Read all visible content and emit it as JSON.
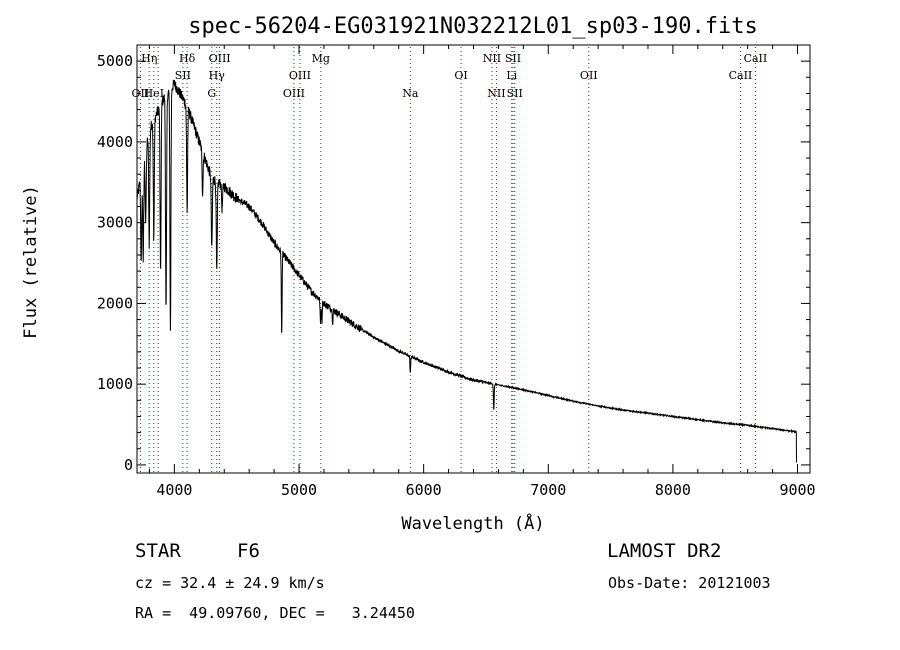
{
  "chart_data": {
    "type": "line",
    "title": "spec-56204-EG031921N032212L01_sp03-190.fits",
    "xlabel": "Wavelength (Å)",
    "ylabel": "Flux (relative)",
    "xlim": [
      3700,
      9100
    ],
    "ylim": [
      -100,
      5200
    ],
    "xticks": [
      4000,
      5000,
      6000,
      7000,
      8000,
      9000
    ],
    "yticks": [
      0,
      1000,
      2000,
      3000,
      4000,
      5000
    ],
    "line_color": "#000000",
    "marker_color": "#cc0000",
    "continuum": {
      "x": [
        3700,
        3800,
        3900,
        4000,
        4100,
        4200,
        4300,
        4400,
        4500,
        4600,
        4700,
        4800,
        4900,
        5000,
        5100,
        5200,
        5400,
        5600,
        5800,
        6000,
        6200,
        6400,
        6600,
        6800,
        7000,
        7200,
        7400,
        7600,
        7800,
        8000,
        8200,
        8400,
        8600,
        8800,
        8990
      ],
      "y": [
        3300,
        4150,
        4500,
        4720,
        4450,
        4000,
        3550,
        3450,
        3300,
        3200,
        3000,
        2750,
        2550,
        2350,
        2150,
        2000,
        1780,
        1580,
        1410,
        1270,
        1150,
        1050,
        990,
        930,
        860,
        790,
        730,
        680,
        640,
        600,
        560,
        520,
        490,
        450,
        410
      ]
    },
    "absorption_lines": [
      {
        "x": 3734,
        "depth": 1100
      },
      {
        "x": 3750,
        "depth": 1200
      },
      {
        "x": 3770,
        "depth": 900
      },
      {
        "x": 3798,
        "depth": 1400
      },
      {
        "x": 3835,
        "depth": 1500
      },
      {
        "x": 3889,
        "depth": 2100
      },
      {
        "x": 3933,
        "depth": 2700
      },
      {
        "x": 3968,
        "depth": 3000
      },
      {
        "x": 4102,
        "depth": 1300
      },
      {
        "x": 4226,
        "depth": 500
      },
      {
        "x": 4300,
        "depth": 900
      },
      {
        "x": 4340,
        "depth": 1150
      },
      {
        "x": 4383,
        "depth": 300
      },
      {
        "x": 4861,
        "depth": 1050
      },
      {
        "x": 5172,
        "depth": 300
      },
      {
        "x": 5183,
        "depth": 250
      },
      {
        "x": 5270,
        "depth": 150
      },
      {
        "x": 5893,
        "depth": 210
      },
      {
        "x": 6563,
        "depth": 330
      }
    ],
    "line_markers": [
      {
        "x": 3727,
        "label": "OII",
        "row": 3
      },
      {
        "x": 3798,
        "label": "Hη",
        "row": 1
      },
      {
        "x": 3835,
        "label": "HeI",
        "row": 3
      },
      {
        "x": 3869,
        "label": "",
        "row": 0
      },
      {
        "x": 4068,
        "label": "SII",
        "row": 2
      },
      {
        "x": 4102,
        "label": "Hδ",
        "row": 1
      },
      {
        "x": 4300,
        "label": "G",
        "row": 3
      },
      {
        "x": 4340,
        "label": "Hγ",
        "row": 2
      },
      {
        "x": 4363,
        "label": "OIII",
        "row": 1
      },
      {
        "x": 4959,
        "label": "OIII",
        "row": 3
      },
      {
        "x": 5007,
        "label": "OIII",
        "row": 2
      },
      {
        "x": 5175,
        "label": "Mg",
        "row": 1
      },
      {
        "x": 5893,
        "label": "Na",
        "row": 3
      },
      {
        "x": 6300,
        "label": "OI",
        "row": 2
      },
      {
        "x": 6548,
        "label": "NII",
        "row": 1
      },
      {
        "x": 6584,
        "label": "NII",
        "row": 3
      },
      {
        "x": 6707,
        "label": "Li",
        "row": 2
      },
      {
        "x": 6717,
        "label": "SII",
        "row": 1
      },
      {
        "x": 6731,
        "label": "SII",
        "row": 3
      },
      {
        "x": 7325,
        "label": "OII",
        "row": 2
      },
      {
        "x": 8542,
        "label": "CaII",
        "row": 2
      },
      {
        "x": 8662,
        "label": "CaII",
        "row": 1
      }
    ]
  },
  "info": {
    "class_label": "STAR",
    "subclass_label": "F6",
    "survey_label": "LAMOST DR2",
    "redshift_text": "cz = 32.4 ± 24.9 km/s",
    "obs_date_text": "Obs-Date: 20121003",
    "coords_text": "RA =  49.09760, DEC =   3.24450"
  }
}
